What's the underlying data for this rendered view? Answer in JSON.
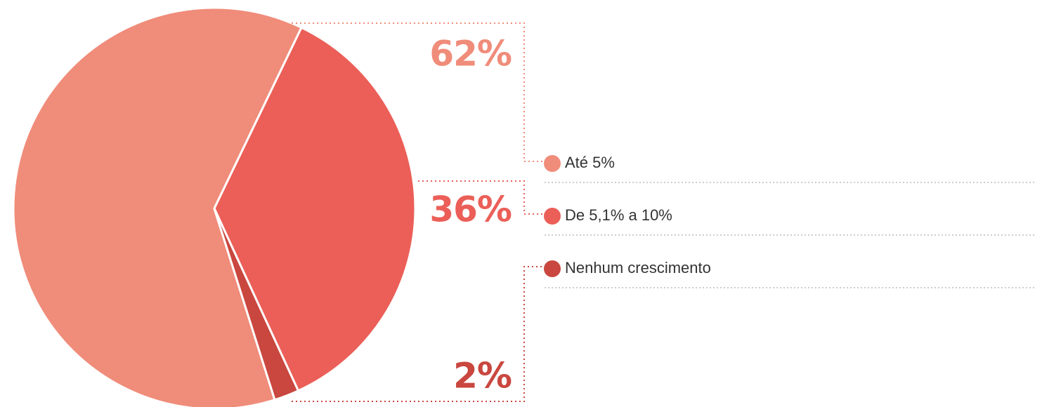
{
  "chart_data": {
    "type": "pie",
    "categories": [
      "Até 5%",
      "De 5,1% a 10%",
      "Nenhum crescimento"
    ],
    "values": [
      62,
      36,
      2
    ],
    "value_labels": [
      "62%",
      "36%",
      "2%"
    ],
    "colors": [
      "#f08c7a",
      "#eb5f58",
      "#c9473f"
    ]
  }
}
